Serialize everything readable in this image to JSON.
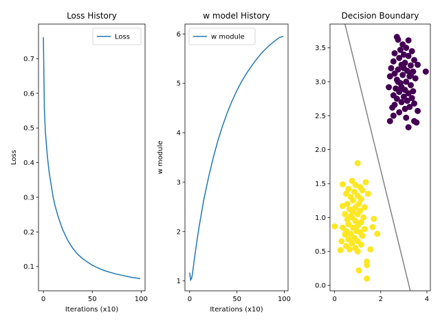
{
  "chart_data": [
    {
      "type": "line",
      "title": "Loss History",
      "xlabel": "Iterations (x10)",
      "ylabel": "Loss",
      "xlim": [
        -5,
        104
      ],
      "ylim": [
        0.03,
        0.8
      ],
      "xticks": [
        0,
        50,
        100
      ],
      "yticks": [
        0.1,
        0.2,
        0.3,
        0.4,
        0.5,
        0.6,
        0.7
      ],
      "legend": "top-right",
      "series": [
        {
          "name": "Loss",
          "color": "#1f77b4",
          "x": [
            0,
            1,
            2,
            3,
            4,
            5,
            6,
            8,
            10,
            12,
            15,
            18,
            20,
            25,
            30,
            35,
            40,
            45,
            50,
            55,
            60,
            65,
            70,
            75,
            80,
            85,
            90,
            95,
            99
          ],
          "y": [
            0.762,
            0.555,
            0.49,
            0.455,
            0.42,
            0.395,
            0.37,
            0.335,
            0.3,
            0.275,
            0.245,
            0.22,
            0.205,
            0.175,
            0.153,
            0.136,
            0.123,
            0.113,
            0.104,
            0.097,
            0.091,
            0.086,
            0.082,
            0.078,
            0.075,
            0.072,
            0.069,
            0.067,
            0.065
          ]
        }
      ]
    },
    {
      "type": "line",
      "title": "w model History",
      "xlabel": "Iterations (x10)",
      "ylabel": "w module",
      "xlim": [
        -5,
        104
      ],
      "ylim": [
        0.8,
        6.2
      ],
      "xticks": [
        0,
        50,
        100
      ],
      "yticks": [
        1,
        2,
        3,
        4,
        5,
        6
      ],
      "legend": "top-left",
      "series": [
        {
          "name": "w module",
          "color": "#1f77b4",
          "x": [
            0,
            1,
            2,
            3,
            5,
            8,
            10,
            15,
            20,
            25,
            30,
            35,
            40,
            45,
            50,
            55,
            60,
            65,
            70,
            75,
            80,
            85,
            90,
            95,
            99
          ],
          "y": [
            1.17,
            1.02,
            1.05,
            1.15,
            1.45,
            1.85,
            2.1,
            2.65,
            3.1,
            3.5,
            3.85,
            4.15,
            4.42,
            4.65,
            4.86,
            5.04,
            5.2,
            5.34,
            5.47,
            5.59,
            5.69,
            5.78,
            5.86,
            5.93,
            5.95
          ]
        }
      ]
    },
    {
      "type": "scatter",
      "title": "Decision Boundary",
      "xlim": [
        -0.2,
        4.15
      ],
      "ylim": [
        -0.08,
        3.85
      ],
      "xticks": [
        0,
        2,
        4
      ],
      "yticks": [
        0.0,
        0.5,
        1.0,
        1.5,
        2.0,
        2.5,
        3.0,
        3.5
      ],
      "boundary": {
        "color": "#808080",
        "x": [
          0.45,
          3.28
        ],
        "y": [
          3.85,
          -0.08
        ]
      },
      "series": [
        {
          "color": "#440154",
          "points": [
            [
              2.7,
              3.66
            ],
            [
              2.75,
              3.62
            ],
            [
              3.2,
              3.61
            ],
            [
              2.95,
              3.55
            ],
            [
              3.1,
              3.5
            ],
            [
              2.85,
              3.47
            ],
            [
              3.35,
              3.45
            ],
            [
              2.6,
              3.42
            ],
            [
              3.0,
              3.4
            ],
            [
              3.2,
              3.38
            ],
            [
              2.8,
              3.35
            ],
            [
              3.45,
              3.32
            ],
            [
              2.55,
              3.3
            ],
            [
              3.05,
              3.28
            ],
            [
              2.9,
              3.25
            ],
            [
              3.3,
              3.24
            ],
            [
              3.6,
              3.25
            ],
            [
              2.45,
              3.2
            ],
            [
              2.75,
              3.18
            ],
            [
              3.15,
              3.16
            ],
            [
              3.4,
              3.15
            ],
            [
              3.95,
              3.15
            ],
            [
              2.6,
              3.12
            ],
            [
              2.95,
              3.1
            ],
            [
              3.25,
              3.08
            ],
            [
              2.4,
              3.08
            ],
            [
              3.5,
              3.05
            ],
            [
              2.7,
              3.03
            ],
            [
              3.1,
              3.0
            ],
            [
              2.85,
              2.98
            ],
            [
              3.3,
              2.95
            ],
            [
              2.35,
              2.92
            ],
            [
              2.65,
              2.9
            ],
            [
              3.05,
              2.88
            ],
            [
              3.4,
              2.86
            ],
            [
              2.8,
              2.85
            ],
            [
              3.2,
              2.83
            ],
            [
              2.55,
              2.8
            ],
            [
              3.0,
              2.78
            ],
            [
              3.35,
              2.76
            ],
            [
              2.7,
              2.75
            ],
            [
              3.15,
              2.72
            ],
            [
              2.9,
              2.7
            ],
            [
              3.45,
              2.68
            ],
            [
              2.6,
              2.66
            ],
            [
              3.25,
              2.63
            ],
            [
              3.05,
              2.6
            ],
            [
              2.5,
              2.62
            ],
            [
              3.6,
              2.57
            ],
            [
              2.8,
              2.55
            ],
            [
              2.55,
              2.5
            ],
            [
              3.1,
              2.47
            ],
            [
              2.4,
              2.42
            ],
            [
              3.45,
              2.42
            ],
            [
              3.55,
              2.4
            ],
            [
              3.2,
              2.33
            ],
            [
              2.75,
              3.0
            ],
            [
              3.0,
              3.2
            ],
            [
              2.9,
              2.92
            ],
            [
              3.3,
              3.1
            ]
          ]
        },
        {
          "color": "#fde725",
          "points": [
            [
              1.0,
              1.8
            ],
            [
              0.75,
              1.54
            ],
            [
              1.35,
              1.52
            ],
            [
              0.35,
              1.49
            ],
            [
              0.9,
              1.48
            ],
            [
              1.1,
              1.45
            ],
            [
              0.6,
              1.42
            ],
            [
              1.2,
              1.4
            ],
            [
              0.85,
              1.38
            ],
            [
              0.5,
              1.35
            ],
            [
              1.45,
              1.35
            ],
            [
              1.0,
              1.32
            ],
            [
              0.7,
              1.3
            ],
            [
              1.15,
              1.27
            ],
            [
              0.8,
              1.25
            ],
            [
              0.55,
              1.2
            ],
            [
              1.05,
              1.2
            ],
            [
              0.35,
              1.17
            ],
            [
              0.9,
              1.15
            ],
            [
              1.3,
              1.15
            ],
            [
              0.65,
              1.12
            ],
            [
              1.1,
              1.1
            ],
            [
              0.8,
              1.08
            ],
            [
              0.45,
              1.05
            ],
            [
              1.0,
              1.05
            ],
            [
              0.7,
              1.02
            ],
            [
              1.25,
              1.0
            ],
            [
              1.7,
              0.98
            ],
            [
              0.55,
              0.97
            ],
            [
              0.9,
              0.95
            ],
            [
              1.15,
              0.93
            ],
            [
              0.6,
              0.9
            ],
            [
              1.0,
              0.88
            ],
            [
              0.35,
              0.85
            ],
            [
              1.65,
              0.86
            ],
            [
              0.8,
              0.85
            ],
            [
              1.3,
              0.83
            ],
            [
              0.5,
              0.8
            ],
            [
              0.95,
              0.8
            ],
            [
              1.1,
              0.78
            ],
            [
              0.7,
              0.76
            ],
            [
              1.85,
              0.76
            ],
            [
              0.45,
              0.75
            ],
            [
              1.2,
              0.73
            ],
            [
              0.85,
              0.7
            ],
            [
              0.6,
              0.68
            ],
            [
              1.0,
              0.65
            ],
            [
              0.3,
              0.65
            ],
            [
              0.75,
              0.62
            ],
            [
              1.15,
              0.6
            ],
            [
              0.5,
              0.58
            ],
            [
              0.9,
              0.55
            ],
            [
              0.65,
              0.53
            ],
            [
              1.55,
              0.53
            ],
            [
              0.25,
              0.52
            ],
            [
              1.0,
              0.5
            ],
            [
              0.0,
              0.87
            ],
            [
              1.4,
              0.35
            ],
            [
              1.4,
              0.3
            ],
            [
              1.05,
              0.22
            ],
            [
              1.4,
              0.1
            ],
            [
              0.75,
              1.0
            ]
          ]
        }
      ]
    }
  ]
}
